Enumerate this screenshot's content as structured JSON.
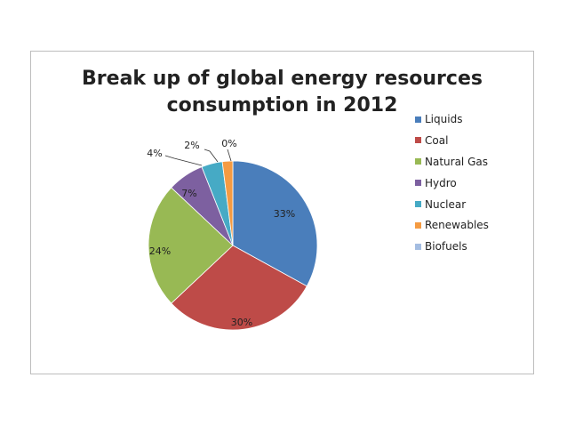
{
  "chart_data": {
    "type": "pie",
    "title": "Break up of global energy resources consumption in 2012",
    "title_lines": [
      "Break up of global energy resources",
      "consumption in 2012"
    ],
    "slices": [
      {
        "name": "Liquids",
        "value": 33,
        "label": "33%",
        "color": "#4a7ebb"
      },
      {
        "name": "Coal",
        "value": 30,
        "label": "30%",
        "color": "#be4b48"
      },
      {
        "name": "Natural Gas",
        "value": 24,
        "label": "24%",
        "color": "#98b954"
      },
      {
        "name": "Hydro",
        "value": 7,
        "label": "7%",
        "color": "#7d60a0"
      },
      {
        "name": "Nuclear",
        "value": 4,
        "label": "4%",
        "color": "#46aac5"
      },
      {
        "name": "Renewables",
        "value": 2,
        "label": "2%",
        "color": "#f59b42"
      },
      {
        "name": "Biofuels",
        "value": 0,
        "label": "0%",
        "color": "#a4bde1"
      }
    ],
    "legend_position": "right",
    "grid": false
  }
}
